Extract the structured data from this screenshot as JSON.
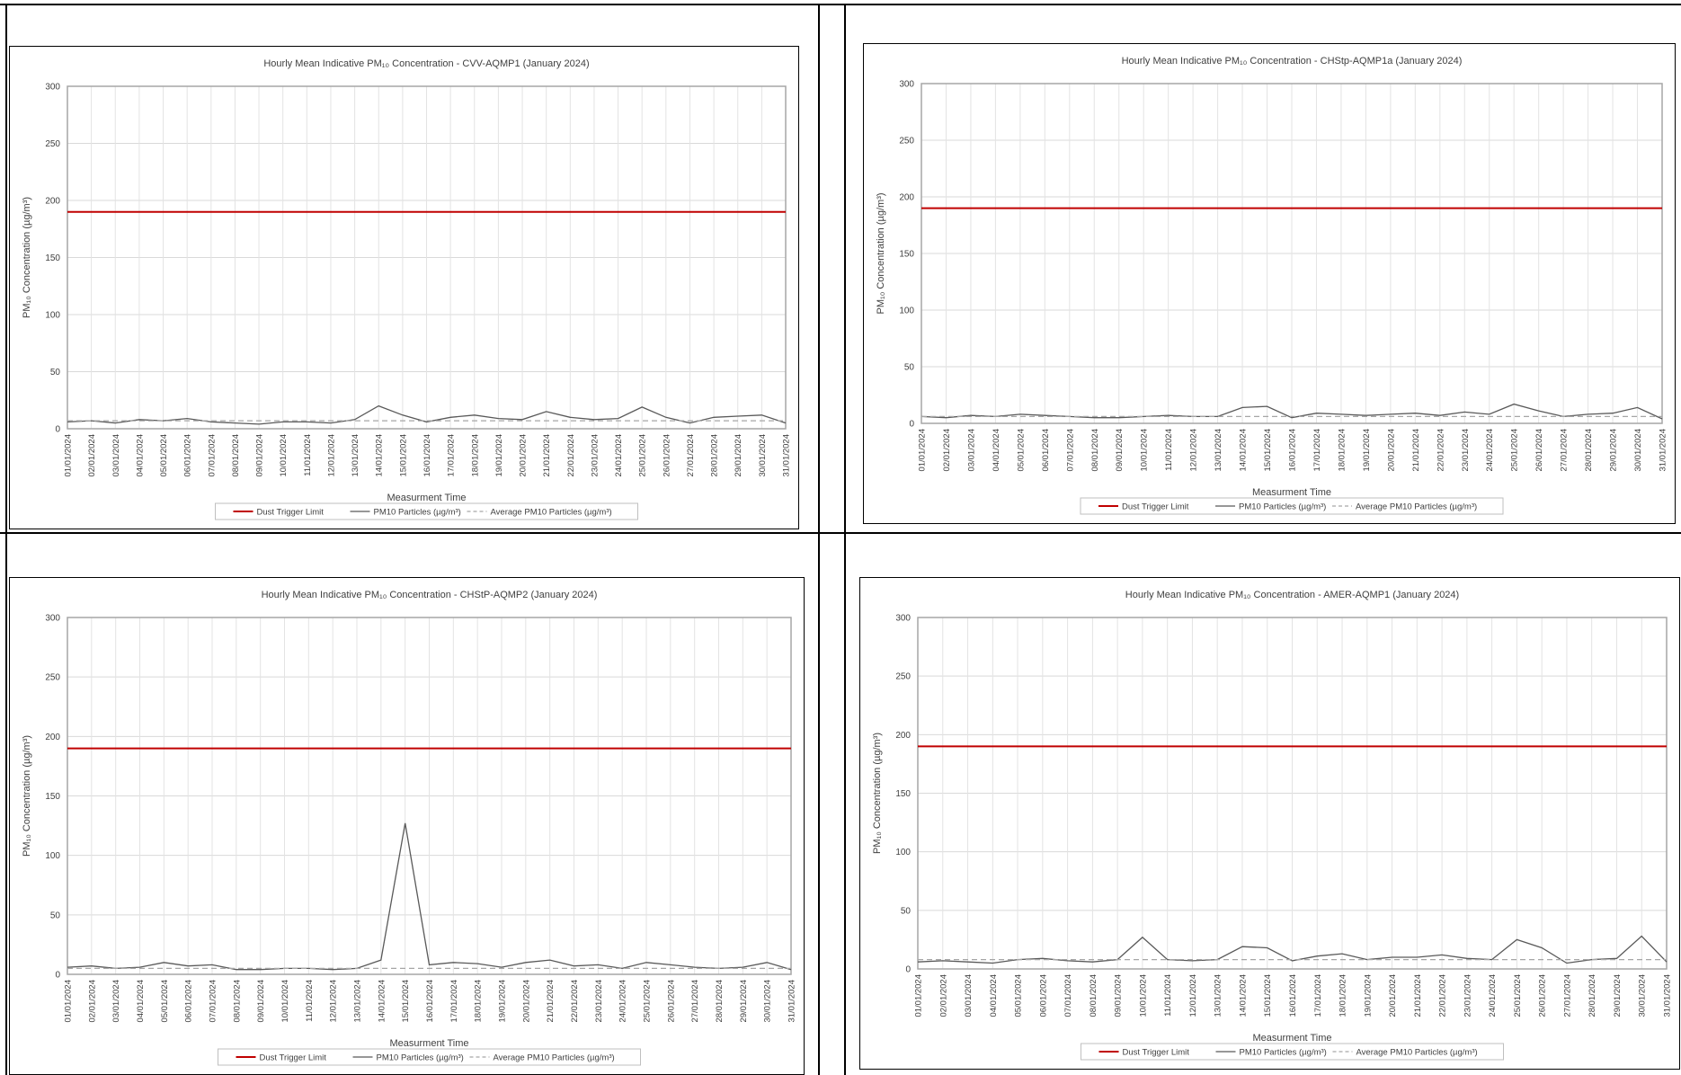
{
  "chart_data": [
    {
      "type": "line",
      "title": "Hourly Mean Indicative PM₁₀ Concentration - CVV-AQMP1 (January 2024)",
      "x_label": "Measurment Time",
      "y_label": "PM₁₀ Concentration (µg/m³)",
      "categories": [
        "01/01/2024",
        "02/01/2024",
        "03/01/2024",
        "04/01/2024",
        "05/01/2024",
        "06/01/2024",
        "07/01/2024",
        "08/01/2024",
        "09/01/2024",
        "10/01/2024",
        "11/01/2024",
        "12/01/2024",
        "13/01/2024",
        "14/01/2024",
        "15/01/2024",
        "16/01/2024",
        "17/01/2024",
        "18/01/2024",
        "19/01/2024",
        "20/01/2024",
        "21/01/2024",
        "22/01/2024",
        "23/01/2024",
        "24/01/2024",
        "25/01/2024",
        "26/01/2024",
        "27/01/2024",
        "28/01/2024",
        "29/01/2024",
        "30/01/2024",
        "31/01/2024"
      ],
      "ylim": [
        0,
        300
      ],
      "yticks": [
        0,
        50,
        100,
        150,
        200,
        250,
        300
      ],
      "grid": true,
      "series": [
        {
          "name": "Dust Trigger Limit",
          "color": "#c00000",
          "values": [
            190,
            190,
            190,
            190,
            190,
            190,
            190,
            190,
            190,
            190,
            190,
            190,
            190,
            190,
            190,
            190,
            190,
            190,
            190,
            190,
            190,
            190,
            190,
            190,
            190,
            190,
            190,
            190,
            190,
            190,
            190
          ]
        },
        {
          "name": "PM10 Particles (µg/m³)",
          "color": "#595959",
          "values": [
            6,
            7,
            5,
            8,
            7,
            9,
            6,
            5,
            4,
            6,
            6,
            5,
            8,
            20,
            12,
            6,
            10,
            12,
            9,
            8,
            15,
            10,
            8,
            9,
            19,
            10,
            5,
            10,
            11,
            12,
            5
          ]
        },
        {
          "name": "Average PM10 Particles (µg/m³)",
          "color": "#a6a6a6",
          "dashed": true,
          "values": [
            7,
            7,
            7,
            7,
            7,
            7,
            7,
            7,
            7,
            7,
            7,
            7,
            7,
            7,
            7,
            7,
            7,
            7,
            7,
            7,
            7,
            7,
            7,
            7,
            7,
            7,
            7,
            7,
            7,
            7,
            7
          ]
        }
      ]
    },
    {
      "type": "line",
      "title": "Hourly Mean Indicative PM₁₀ Concentration - CHStp-AQMP1a (January 2024)",
      "x_label": "Measurment Time",
      "y_label": "PM₁₀ Concentration (µg/m³)",
      "categories": [
        "01/01/2024",
        "02/01/2024",
        "03/01/2024",
        "04/01/2024",
        "05/01/2024",
        "06/01/2024",
        "07/01/2024",
        "08/01/2024",
        "09/01/2024",
        "10/01/2024",
        "11/01/2024",
        "12/01/2024",
        "13/01/2024",
        "14/01/2024",
        "15/01/2024",
        "16/01/2024",
        "17/01/2024",
        "18/01/2024",
        "19/01/2024",
        "20/01/2024",
        "21/01/2024",
        "22/01/2024",
        "23/01/2024",
        "24/01/2024",
        "25/01/2024",
        "26/01/2024",
        "27/01/2024",
        "28/01/2024",
        "29/01/2024",
        "30/01/2024",
        "31/01/2024"
      ],
      "ylim": [
        0,
        300
      ],
      "yticks": [
        0,
        50,
        100,
        150,
        200,
        250,
        300
      ],
      "grid": true,
      "series": [
        {
          "name": "Dust Trigger Limit",
          "color": "#c00000",
          "values": [
            190,
            190,
            190,
            190,
            190,
            190,
            190,
            190,
            190,
            190,
            190,
            190,
            190,
            190,
            190,
            190,
            190,
            190,
            190,
            190,
            190,
            190,
            190,
            190,
            190,
            190,
            190,
            190,
            190,
            190,
            190
          ]
        },
        {
          "name": "PM10 Particles (µg/m³)",
          "color": "#595959",
          "values": [
            6,
            5,
            7,
            6,
            8,
            7,
            6,
            5,
            5,
            6,
            7,
            6,
            6,
            14,
            15,
            5,
            9,
            8,
            7,
            8,
            9,
            7,
            10,
            8,
            17,
            11,
            6,
            8,
            9,
            14,
            4
          ]
        },
        {
          "name": "Average PM10 Particles (µg/m³)",
          "color": "#a6a6a6",
          "dashed": true,
          "values": [
            6,
            6,
            6,
            6,
            6,
            6,
            6,
            6,
            6,
            6,
            6,
            6,
            6,
            6,
            6,
            6,
            6,
            6,
            6,
            6,
            6,
            6,
            6,
            6,
            6,
            6,
            6,
            6,
            6,
            6,
            6
          ]
        }
      ]
    },
    {
      "type": "line",
      "title": "Hourly Mean Indicative PM₁₀ Concentration - CHStP-AQMP2 (January 2024)",
      "x_label": "Measurment Time",
      "y_label": "PM₁₀ Concentration (µg/m³)",
      "categories": [
        "01/01/2024",
        "02/01/2024",
        "03/01/2024",
        "04/01/2024",
        "05/01/2024",
        "06/01/2024",
        "07/01/2024",
        "08/01/2024",
        "09/01/2024",
        "10/01/2024",
        "11/01/2024",
        "12/01/2024",
        "13/01/2024",
        "14/01/2024",
        "15/01/2024",
        "16/01/2024",
        "17/01/2024",
        "18/01/2024",
        "19/01/2024",
        "20/01/2024",
        "21/01/2024",
        "22/01/2024",
        "23/01/2024",
        "24/01/2024",
        "25/01/2024",
        "26/01/2024",
        "27/01/2024",
        "28/01/2024",
        "29/01/2024",
        "30/01/2024",
        "31/01/2024"
      ],
      "ylim": [
        0,
        300
      ],
      "yticks": [
        0,
        50,
        100,
        150,
        200,
        250,
        300
      ],
      "grid": true,
      "series": [
        {
          "name": "Dust Trigger Limit",
          "color": "#c00000",
          "values": [
            190,
            190,
            190,
            190,
            190,
            190,
            190,
            190,
            190,
            190,
            190,
            190,
            190,
            190,
            190,
            190,
            190,
            190,
            190,
            190,
            190,
            190,
            190,
            190,
            190,
            190,
            190,
            190,
            190,
            190,
            190
          ]
        },
        {
          "name": "PM10 Particles (µg/m³)",
          "color": "#595959",
          "values": [
            6,
            7,
            5,
            6,
            10,
            7,
            8,
            4,
            4,
            5,
            5,
            4,
            5,
            12,
            127,
            8,
            10,
            9,
            6,
            10,
            12,
            7,
            8,
            5,
            10,
            8,
            6,
            5,
            6,
            10,
            4
          ]
        },
        {
          "name": "Average PM10 Particles (µg/m³)",
          "color": "#a6a6a6",
          "dashed": true,
          "values": [
            5,
            5,
            5,
            5,
            5,
            5,
            5,
            5,
            5,
            5,
            5,
            5,
            5,
            5,
            5,
            5,
            5,
            5,
            5,
            5,
            5,
            5,
            5,
            5,
            5,
            5,
            5,
            5,
            5,
            5,
            5
          ]
        }
      ]
    },
    {
      "type": "line",
      "title": "Hourly Mean Indicative PM₁₀ Concentration - AMER-AQMP1 (January 2024)",
      "x_label": "Measurment Time",
      "y_label": "PM₁₀ Concentration (µg/m³)",
      "categories": [
        "01/01/2024",
        "02/01/2024",
        "03/01/2024",
        "04/01/2024",
        "05/01/2024",
        "06/01/2024",
        "07/01/2024",
        "08/01/2024",
        "09/01/2024",
        "10/01/2024",
        "11/01/2024",
        "12/01/2024",
        "13/01/2024",
        "14/01/2024",
        "15/01/2024",
        "16/01/2024",
        "17/01/2024",
        "18/01/2024",
        "19/01/2024",
        "20/01/2024",
        "21/01/2024",
        "22/01/2024",
        "23/01/2024",
        "24/01/2024",
        "25/01/2024",
        "26/01/2024",
        "27/01/2024",
        "28/01/2024",
        "29/01/2024",
        "30/01/2024",
        "31/01/2024"
      ],
      "ylim": [
        0,
        300
      ],
      "yticks": [
        0,
        50,
        100,
        150,
        200,
        250,
        300
      ],
      "grid": true,
      "series": [
        {
          "name": "Dust Trigger Limit",
          "color": "#c00000",
          "values": [
            190,
            190,
            190,
            190,
            190,
            190,
            190,
            190,
            190,
            190,
            190,
            190,
            190,
            190,
            190,
            190,
            190,
            190,
            190,
            190,
            190,
            190,
            190,
            190,
            190,
            190,
            190,
            190,
            190,
            190,
            190
          ]
        },
        {
          "name": "PM10 Particles (µg/m³)",
          "color": "#595959",
          "values": [
            6,
            7,
            6,
            5,
            8,
            9,
            7,
            6,
            8,
            27,
            8,
            7,
            8,
            19,
            18,
            7,
            11,
            13,
            8,
            10,
            10,
            12,
            9,
            8,
            25,
            18,
            5,
            8,
            9,
            28,
            6
          ]
        },
        {
          "name": "Average PM10 Particles (µg/m³)",
          "color": "#a6a6a6",
          "dashed": true,
          "values": [
            8,
            8,
            8,
            8,
            8,
            8,
            8,
            8,
            8,
            8,
            8,
            8,
            8,
            8,
            8,
            8,
            8,
            8,
            8,
            8,
            8,
            8,
            8,
            8,
            8,
            8,
            8,
            8,
            8,
            8,
            8
          ]
        }
      ]
    }
  ]
}
